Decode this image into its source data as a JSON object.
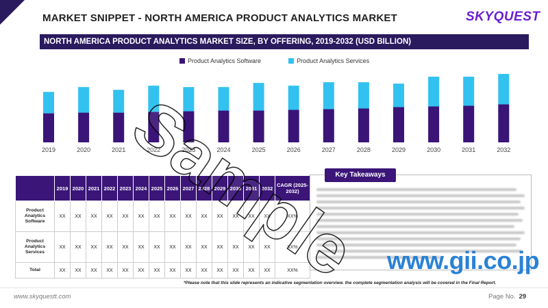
{
  "header": {
    "title": "MARKET SNIPPET - NORTH AMERICA PRODUCT ANALYTICS MARKET",
    "logo": "SKYQUEST"
  },
  "banner": {
    "text": "NORTH AMERICA PRODUCT ANALYTICS MARKET SIZE,  BY OFFERING, 2019-2032 (USD BILLION)"
  },
  "colors": {
    "software": "#3a1476",
    "services": "#33c1f0",
    "header_bg": "#2a1a5e",
    "table_header": "#3b1578"
  },
  "chart_data": {
    "type": "bar",
    "stacked": true,
    "categories": [
      "2019",
      "2020",
      "2021",
      "2022",
      "2023",
      "2024",
      "2025",
      "2026",
      "2027",
      "2028",
      "2029",
      "2030",
      "2031",
      "2032"
    ],
    "series": [
      {
        "name": "Product Analytics Software",
        "values": [
          42,
          43,
          43,
          44,
          45,
          46,
          46,
          47,
          48,
          49,
          51,
          52,
          53,
          55
        ]
      },
      {
        "name": "Product Analytics Services",
        "values": [
          31,
          37,
          33,
          38,
          35,
          34,
          40,
          35,
          39,
          38,
          34,
          43,
          42,
          44
        ]
      }
    ],
    "y_axis_visible": false,
    "grid": false,
    "legend_position": "top"
  },
  "table": {
    "years": [
      "2019",
      "2020",
      "2021",
      "2022",
      "2023",
      "2024",
      "2025",
      "2026",
      "2027",
      "2028",
      "2029",
      "2030",
      "2031",
      "2032"
    ],
    "cagr_header": "CAGR (2025-2032)",
    "rows": [
      {
        "label": "Product Analytics Software",
        "values": [
          "XX",
          "XX",
          "XX",
          "XX",
          "XX",
          "XX",
          "XX",
          "XX",
          "XX",
          "XX",
          "XX",
          "XX",
          "XX",
          "XX"
        ],
        "cagr": "XX%"
      },
      {
        "label": "Product Analytics Services",
        "values": [
          "XX",
          "XX",
          "XX",
          "XX",
          "XX",
          "XX",
          "XX",
          "XX",
          "XX",
          "XX",
          "XX",
          "XX",
          "XX",
          "XX"
        ],
        "cagr": "XX%"
      },
      {
        "label": "Total",
        "values": [
          "XX",
          "XX",
          "XX",
          "XX",
          "XX",
          "XX",
          "XX",
          "XX",
          "XX",
          "XX",
          "XX",
          "XX",
          "XX",
          "XX"
        ],
        "cagr": "XX%"
      }
    ]
  },
  "takeaways": {
    "title": "Key Takeaways"
  },
  "footnote": "*Please note that this slide represents an indicative segmentation overview. the complete segmentation analysis will be covered in the Final Report.",
  "footer": {
    "website": "www.skyquestt.com",
    "page_label": "Page No.",
    "page_number": "29"
  },
  "watermarks": {
    "sample": "Sample",
    "gii": "www.gii.co.jp"
  }
}
